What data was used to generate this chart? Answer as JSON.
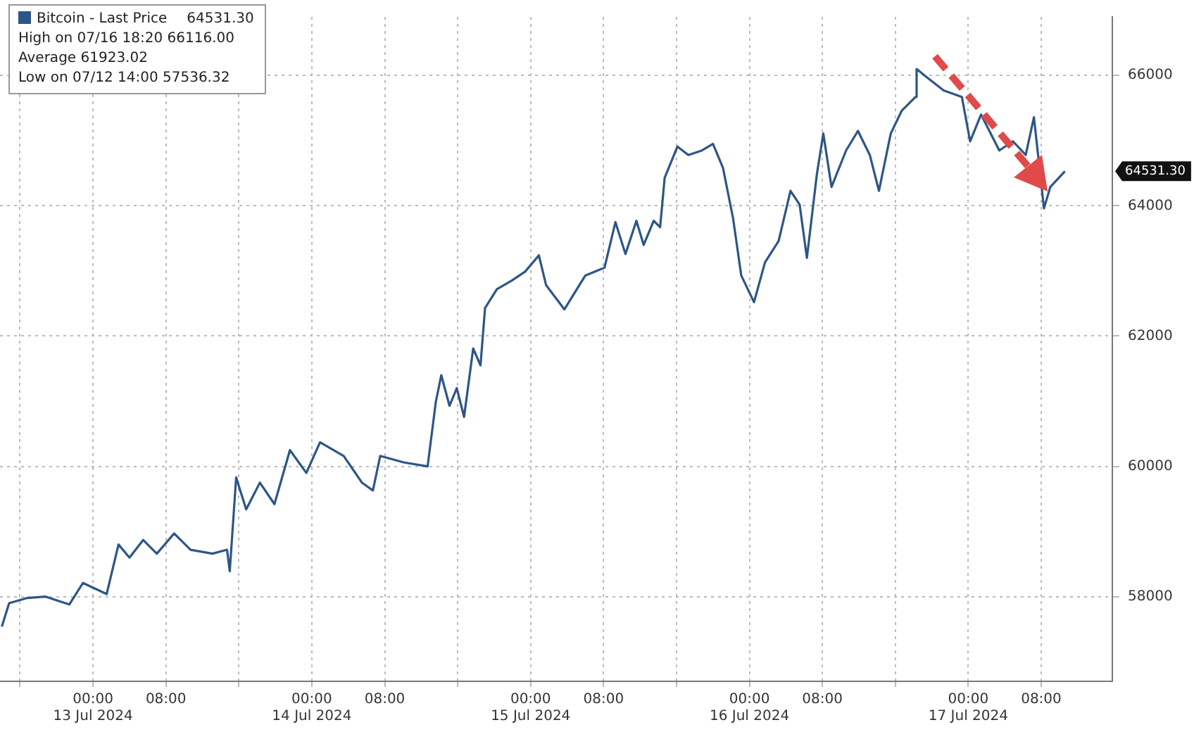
{
  "chart_data": {
    "type": "line",
    "x": [
      "2024-07-12T14:00",
      "2024-07-12T14:48",
      "2024-07-12T16:48",
      "2024-07-12T18:48",
      "2024-07-12T21:24",
      "2024-07-12T22:54",
      "2024-07-13T01:30",
      "2024-07-13T02:48",
      "2024-07-13T04:00",
      "2024-07-13T05:30",
      "2024-07-13T07:00",
      "2024-07-13T08:54",
      "2024-07-13T10:42",
      "2024-07-13T13:06",
      "2024-07-13T14:42",
      "2024-07-13T15:00",
      "2024-07-13T15:42",
      "2024-07-13T16:48",
      "2024-07-13T18:18",
      "2024-07-13T19:54",
      "2024-07-13T21:36",
      "2024-07-13T23:24",
      "2024-07-14T00:54",
      "2024-07-14T03:30",
      "2024-07-14T05:30",
      "2024-07-14T06:42",
      "2024-07-14T07:30",
      "2024-07-14T10:06",
      "2024-07-14T12:42",
      "2024-07-14T13:36",
      "2024-07-14T14:12",
      "2024-07-14T15:06",
      "2024-07-14T15:54",
      "2024-07-14T16:42",
      "2024-07-14T17:42",
      "2024-07-14T18:30",
      "2024-07-14T19:00",
      "2024-07-14T20:18",
      "2024-07-14T21:54",
      "2024-07-14T23:24",
      "2024-07-15T00:54",
      "2024-07-15T01:42",
      "2024-07-15T03:42",
      "2024-07-15T06:00",
      "2024-07-15T08:06",
      "2024-07-15T09:18",
      "2024-07-15T10:24",
      "2024-07-15T11:36",
      "2024-07-15T12:24",
      "2024-07-15T13:30",
      "2024-07-15T14:12",
      "2024-07-15T14:42",
      "2024-07-15T16:06",
      "2024-07-15T17:18",
      "2024-07-15T18:48",
      "2024-07-15T20:00",
      "2024-07-15T21:06",
      "2024-07-15T22:12",
      "2024-07-15T23:06",
      "2024-07-16T00:30",
      "2024-07-16T01:42",
      "2024-07-16T03:12",
      "2024-07-16T04:30",
      "2024-07-16T05:30",
      "2024-07-16T06:18",
      "2024-07-16T07:24",
      "2024-07-16T08:06",
      "2024-07-16T09:00",
      "2024-07-16T10:36",
      "2024-07-16T11:54",
      "2024-07-16T13:12",
      "2024-07-16T14:12",
      "2024-07-16T15:30",
      "2024-07-16T16:42",
      "2024-07-16T18:12",
      "2024-07-16T18:20",
      "2024-07-16T19:24",
      "2024-07-16T21:18",
      "2024-07-16T23:18",
      "2024-07-17T00:12",
      "2024-07-17T01:24",
      "2024-07-17T03:24",
      "2024-07-17T04:54",
      "2024-07-17T06:18",
      "2024-07-17T07:12",
      "2024-07-17T08:18",
      "2024-07-17T09:00",
      "2024-07-17T10:36"
    ],
    "series": [
      {
        "name": "Bitcoin - Last Price",
        "color": "#2d5688",
        "values": [
          57540,
          57900,
          57980,
          58000,
          57880,
          58210,
          58040,
          58800,
          58600,
          58870,
          58660,
          58970,
          58720,
          58660,
          58720,
          58390,
          59830,
          59340,
          59750,
          59420,
          60250,
          59900,
          60370,
          60160,
          59750,
          59630,
          60160,
          60060,
          60000,
          60990,
          61400,
          60930,
          61200,
          60760,
          61810,
          61550,
          62430,
          62720,
          62850,
          62990,
          63240,
          62780,
          62410,
          62930,
          63050,
          63750,
          63260,
          63770,
          63400,
          63770,
          63670,
          64430,
          64910,
          64780,
          64850,
          64950,
          64580,
          63810,
          62930,
          62520,
          63130,
          63460,
          64230,
          64020,
          63200,
          64490,
          65110,
          64290,
          64850,
          65150,
          64780,
          64230,
          65110,
          65460,
          65670,
          66100,
          65980,
          65770,
          65670,
          64990,
          65400,
          64850,
          64990,
          64780,
          65360,
          63960,
          64290,
          64530
        ]
      }
    ],
    "xlim": [
      "2024-07-12T13:48",
      "2024-07-17T15:48"
    ],
    "xticks": [
      {
        "value": "2024-07-12T16:00",
        "label": null
      },
      {
        "value": "2024-07-13T00:00",
        "label": "00:00\n13 Jul 2024"
      },
      {
        "value": "2024-07-13T08:00",
        "label": "08:00"
      },
      {
        "value": "2024-07-13T16:00",
        "label": null
      },
      {
        "value": "2024-07-14T00:00",
        "label": "00:00\n14 Jul 2024"
      },
      {
        "value": "2024-07-14T08:00",
        "label": "08:00"
      },
      {
        "value": "2024-07-14T16:00",
        "label": null
      },
      {
        "value": "2024-07-15T00:00",
        "label": "00:00\n15 Jul 2024"
      },
      {
        "value": "2024-07-15T08:00",
        "label": "08:00"
      },
      {
        "value": "2024-07-15T16:00",
        "label": null
      },
      {
        "value": "2024-07-16T00:00",
        "label": "00:00\n16 Jul 2024"
      },
      {
        "value": "2024-07-16T08:00",
        "label": "08:00"
      },
      {
        "value": "2024-07-16T16:00",
        "label": null
      },
      {
        "value": "2024-07-17T00:00",
        "label": "00:00\n17 Jul 2024"
      },
      {
        "value": "2024-07-17T08:00",
        "label": "08:00"
      }
    ],
    "ylim": [
      56700,
      66900
    ],
    "yticks": [
      58000,
      60000,
      62000,
      64000,
      66000
    ],
    "grid": true,
    "legend": "top left",
    "marker": "none",
    "line_style": "solid",
    "annotations": [
      "64531.30",
      "High on 07/16 18:20 66116.00",
      "Average 61923.02",
      "Low on 07/12 14:00 57536.32"
    ]
  }
}
